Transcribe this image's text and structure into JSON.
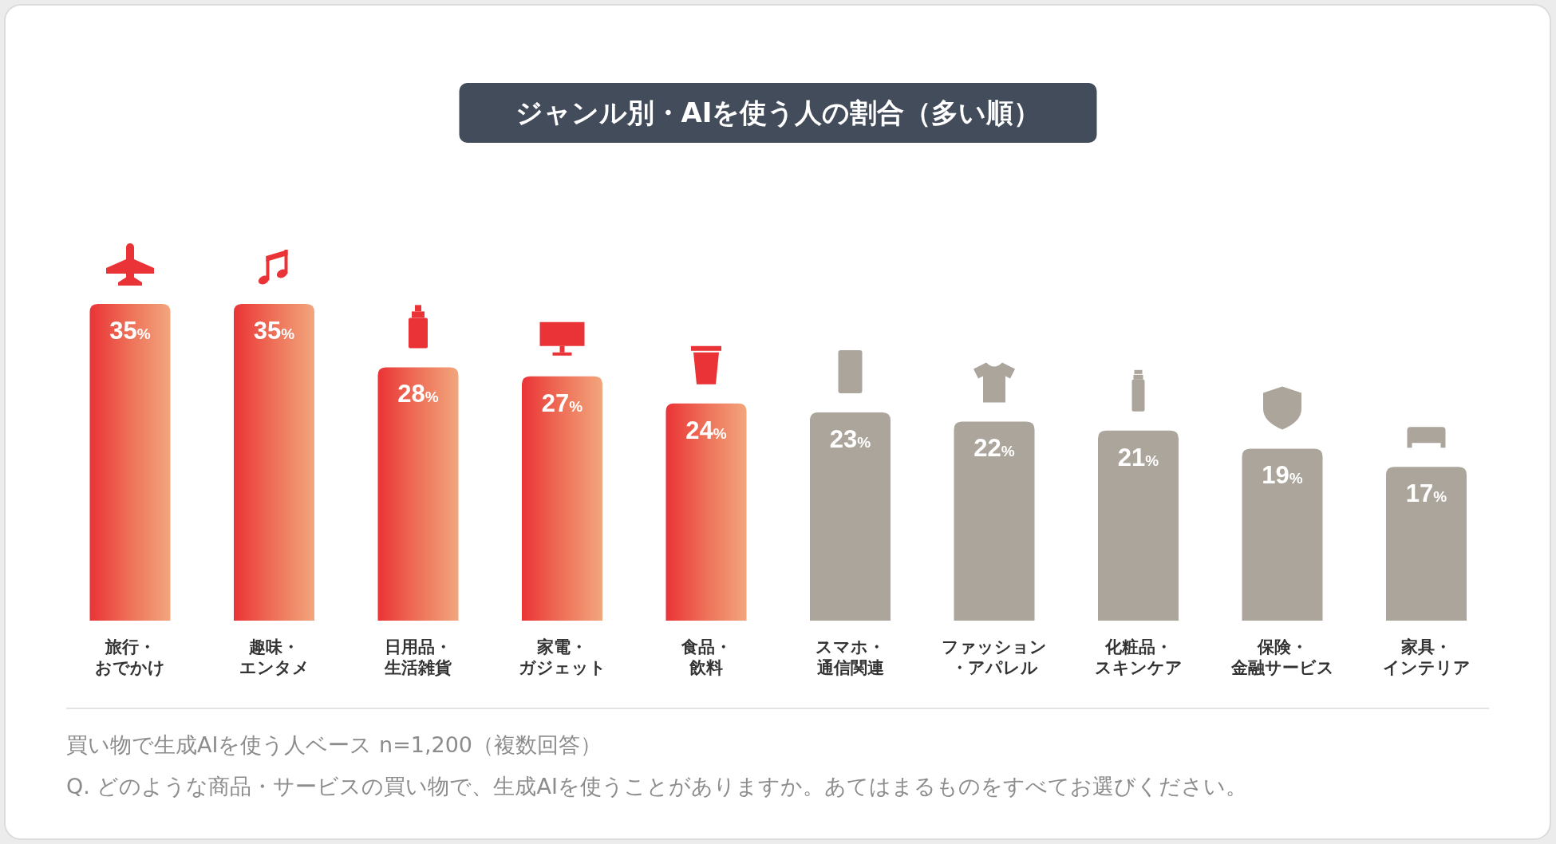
{
  "chart_data": {
    "type": "bar",
    "title": "ジャンル別・AIを使う人の割合（多い順）",
    "categories": [
      "旅行・おでかけ",
      "趣味・エンタメ",
      "日用品・生活雑貨",
      "家電・ガジェット",
      "食品・飲料",
      "スマホ・通信関連",
      "ファッション・アパレル",
      "化粧品・スキンケア",
      "保険・金融サービス",
      "家具・インテリア"
    ],
    "values": [
      35,
      35,
      28,
      27,
      24,
      23,
      22,
      21,
      19,
      17
    ],
    "colors": [
      "#ee7158",
      "#ee7158",
      "#ee7158",
      "#ee7158",
      "#ee7158",
      "#aba59b",
      "#aba59b",
      "#aba59b",
      "#aba59b",
      "#aba59b"
    ],
    "value_labels": [
      "35%",
      "35%",
      "28%",
      "27%",
      "24%",
      "23%",
      "22%",
      "21%",
      "19%",
      "17%"
    ],
    "annotations": [
      "買い物で生成AIを使う人ベース n=1,200（複数回答）",
      "Q. どのような商品・サービスの買い物で、生成AIを使うことがありますか。あてはまるものをすべてお選びください。"
    ]
  }
}
